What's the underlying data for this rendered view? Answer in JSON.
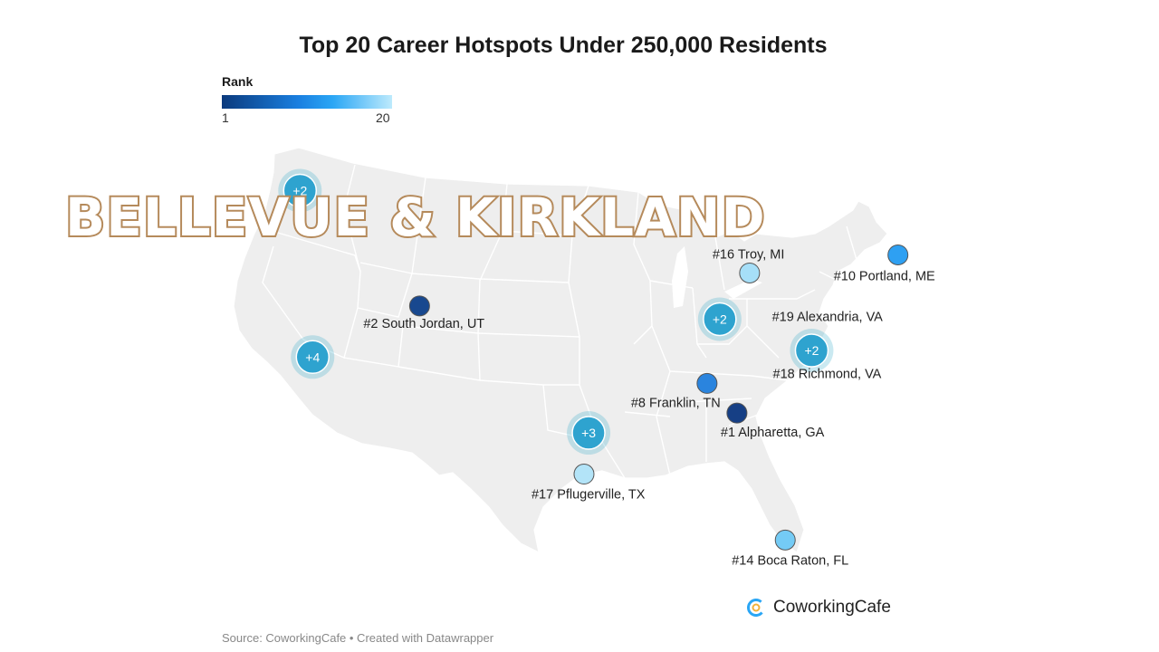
{
  "title": "Top 20 Career Hotspots Under 250,000 Residents",
  "legend": {
    "title": "Rank",
    "min_label": "1",
    "max_label": "20",
    "colors": [
      "#0b3a7d",
      "#1a7fe0",
      "#2aa6f5",
      "#bdeafc"
    ]
  },
  "overlay_text": "BELLEVUE & KIRKLAND",
  "clusters": [
    {
      "id": "pacific-northwest",
      "label": "+2",
      "lon": -122.3,
      "lat": 47.6
    },
    {
      "id": "california",
      "label": "+4",
      "lon": -121.2,
      "lat": 37.5
    },
    {
      "id": "texas",
      "label": "+3",
      "lon": -97.2,
      "lat": 32.9
    },
    {
      "id": "midwest",
      "label": "+2",
      "lon": -85.8,
      "lat": 39.8
    },
    {
      "id": "virginia",
      "label": "+2",
      "lon": -77.8,
      "lat": 37.9
    }
  ],
  "cities": [
    {
      "id": "alpharetta",
      "rank": 1,
      "label": "#1 Alpharetta, GA",
      "lon": -84.3,
      "lat": 34.1,
      "color": "#163f85"
    },
    {
      "id": "south-jordan",
      "rank": 2,
      "label": "#2 South Jordan, UT",
      "lon": -111.9,
      "lat": 40.6,
      "color": "#18488f"
    },
    {
      "id": "franklin",
      "rank": 8,
      "label": "#8 Franklin, TN",
      "lon": -86.9,
      "lat": 35.9,
      "color": "#2a84de"
    },
    {
      "id": "portland-me",
      "rank": 10,
      "label": "#10 Portland, ME",
      "lon": -70.3,
      "lat": 43.7,
      "color": "#2ea0f2"
    },
    {
      "id": "boca-raton",
      "rank": 14,
      "label": "#14 Boca Raton, FL",
      "lon": -80.1,
      "lat": 26.4,
      "color": "#74cbf5"
    },
    {
      "id": "troy",
      "rank": 16,
      "label": "#16 Troy, MI",
      "lon": -83.2,
      "lat": 42.6,
      "color": "#a6dff8"
    },
    {
      "id": "pflugerville",
      "rank": 17,
      "label": "#17 Pflugerville, TX",
      "lon": -97.6,
      "lat": 30.4,
      "color": "#b3e4f8"
    },
    {
      "id": "richmond",
      "rank": 18,
      "label": "#18 Richmond, VA",
      "lon": -77.4,
      "lat": 37.5,
      "color": ""
    },
    {
      "id": "alexandria",
      "rank": 19,
      "label": "#19 Alexandria, VA",
      "lon": -77.0,
      "lat": 38.8,
      "color": ""
    }
  ],
  "logo": {
    "text": "CoworkingCafe",
    "icon": "coworkingcafe-logo-icon",
    "color": "#2aa6f5"
  },
  "source": "Source: CoworkingCafe • Created with Datawrapper"
}
